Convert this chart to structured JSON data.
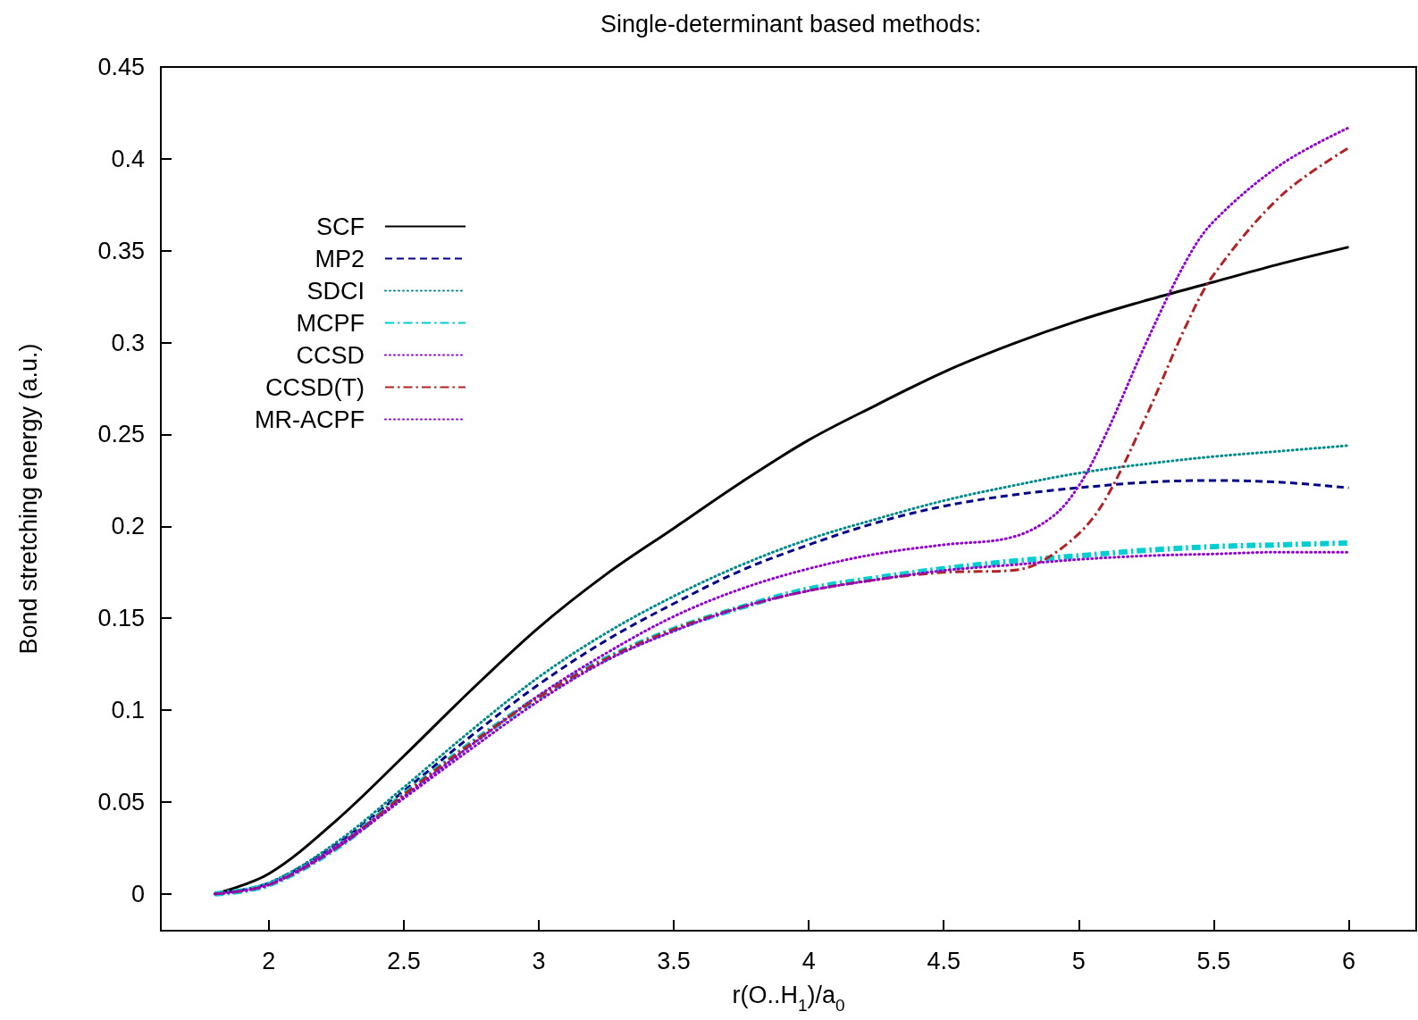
{
  "chart_data": {
    "type": "line",
    "title": "Single-determinant based methods:",
    "xlabel": "r(O..H$_{1}$)/a$_{0}$",
    "ylabel": "Bond stretching energy (a.u.)",
    "xlim": [
      1.6,
      6.25
    ],
    "xticks": [
      2,
      2.5,
      3,
      3.5,
      4,
      4.5,
      5,
      5.5,
      6
    ],
    "ylim": [
      -0.02,
      0.45
    ],
    "yticks": [
      0,
      0.05,
      0.1,
      0.15,
      0.2,
      0.25,
      0.3,
      0.35,
      0.4,
      0.45
    ],
    "grid": false,
    "legend": "top left",
    "marker": "none",
    "x": [
      1.8,
      2.0,
      2.25,
      2.5,
      2.75,
      3.0,
      3.25,
      3.5,
      3.75,
      4.0,
      4.25,
      4.5,
      4.75,
      5.0,
      5.25,
      5.5,
      5.75,
      6.0
    ],
    "series": [
      {
        "name": "SCF",
        "color": "#000000",
        "line_style": "solid",
        "values": [
          0,
          0.011,
          0.04,
          0.075,
          0.111,
          0.145,
          0.174,
          0.199,
          0.224,
          0.247,
          0.266,
          0.284,
          0.299,
          0.312,
          0.323,
          0.333,
          0.343,
          0.352
        ]
      },
      {
        "name": "MP2",
        "color": "#00008b",
        "line_style": "dashed",
        "values": [
          0,
          0.006,
          0.027,
          0.056,
          0.086,
          0.114,
          0.138,
          0.158,
          0.176,
          0.19,
          0.202,
          0.211,
          0.217,
          0.221,
          0.224,
          0.225,
          0.224,
          0.221
        ]
      },
      {
        "name": "SDCI",
        "color": "#008b8b",
        "line_style": "dotted",
        "values": [
          0,
          0.006,
          0.028,
          0.058,
          0.089,
          0.118,
          0.142,
          0.162,
          0.179,
          0.193,
          0.204,
          0.214,
          0.222,
          0.229,
          0.234,
          0.238,
          0.241,
          0.244
        ]
      },
      {
        "name": "MCPF",
        "color": "#00ced1",
        "line_style": "dashdot",
        "values": [
          0,
          0.005,
          0.025,
          0.054,
          0.082,
          0.107,
          0.128,
          0.144,
          0.156,
          0.166,
          0.172,
          0.177,
          0.181,
          0.184,
          0.187,
          0.189,
          0.19,
          0.191
        ]
      },
      {
        "name": "CCSD",
        "color": "#9400d3",
        "line_style": "dotted",
        "x": [
          1.8,
          2.0,
          2.25,
          2.5,
          2.75,
          3.0,
          3.25,
          3.5,
          3.75,
          4.0,
          4.25,
          4.5,
          4.75,
          4.9,
          5.0,
          5.1,
          5.25,
          5.4,
          5.5,
          5.75,
          6.0
        ],
        "values": [
          0,
          0.005,
          0.026,
          0.053,
          0.081,
          0.108,
          0.131,
          0.151,
          0.166,
          0.177,
          0.185,
          0.19,
          0.194,
          0.205,
          0.222,
          0.25,
          0.3,
          0.345,
          0.366,
          0.397,
          0.417
        ]
      },
      {
        "name": "CCSD(T)",
        "color": "#b22222",
        "line_style": "dashdot",
        "x": [
          1.8,
          2.0,
          2.25,
          2.5,
          2.75,
          3.0,
          3.25,
          3.5,
          3.75,
          4.0,
          4.25,
          4.5,
          4.75,
          4.85,
          5.0,
          5.1,
          5.25,
          5.4,
          5.5,
          5.75,
          6.0
        ],
        "values": [
          0,
          0.005,
          0.025,
          0.054,
          0.082,
          0.107,
          0.128,
          0.144,
          0.156,
          0.165,
          0.171,
          0.175,
          0.176,
          0.18,
          0.196,
          0.215,
          0.26,
          0.31,
          0.337,
          0.38,
          0.406
        ]
      },
      {
        "name": "MR-ACPF",
        "color": "#9400d3",
        "line_style": "dotted",
        "values": [
          0,
          0.005,
          0.025,
          0.052,
          0.079,
          0.105,
          0.127,
          0.143,
          0.156,
          0.165,
          0.171,
          0.176,
          0.179,
          0.182,
          0.184,
          0.185,
          0.186,
          0.186
        ]
      }
    ]
  }
}
